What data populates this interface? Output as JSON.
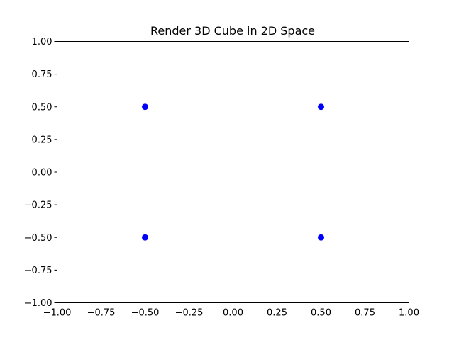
{
  "chart_data": {
    "type": "scatter",
    "title": "Render 3D Cube in 2D Space",
    "xlabel": "",
    "ylabel": "",
    "xlim": [
      -1.0,
      1.0
    ],
    "ylim": [
      -1.0,
      1.0
    ],
    "grid": false,
    "legend": "none",
    "marker_color": "#0000ff",
    "x_ticks": [
      {
        "value": -1.0,
        "label": "−1.00"
      },
      {
        "value": -0.75,
        "label": "−0.75"
      },
      {
        "value": -0.5,
        "label": "−0.50"
      },
      {
        "value": -0.25,
        "label": "−0.25"
      },
      {
        "value": 0.0,
        "label": "0.00"
      },
      {
        "value": 0.25,
        "label": "0.25"
      },
      {
        "value": 0.5,
        "label": "0.50"
      },
      {
        "value": 0.75,
        "label": "0.75"
      },
      {
        "value": 1.0,
        "label": "1.00"
      }
    ],
    "y_ticks": [
      {
        "value": -1.0,
        "label": "−1.00"
      },
      {
        "value": -0.75,
        "label": "−0.75"
      },
      {
        "value": -0.5,
        "label": "−0.50"
      },
      {
        "value": -0.25,
        "label": "−0.25"
      },
      {
        "value": 0.0,
        "label": "0.00"
      },
      {
        "value": 0.25,
        "label": "0.25"
      },
      {
        "value": 0.5,
        "label": "0.50"
      },
      {
        "value": 0.75,
        "label": "0.75"
      },
      {
        "value": 1.0,
        "label": "1.00"
      }
    ],
    "points": [
      {
        "x": -0.5,
        "y": 0.5
      },
      {
        "x": 0.5,
        "y": 0.5
      },
      {
        "x": -0.5,
        "y": -0.5
      },
      {
        "x": 0.5,
        "y": -0.5
      }
    ]
  }
}
